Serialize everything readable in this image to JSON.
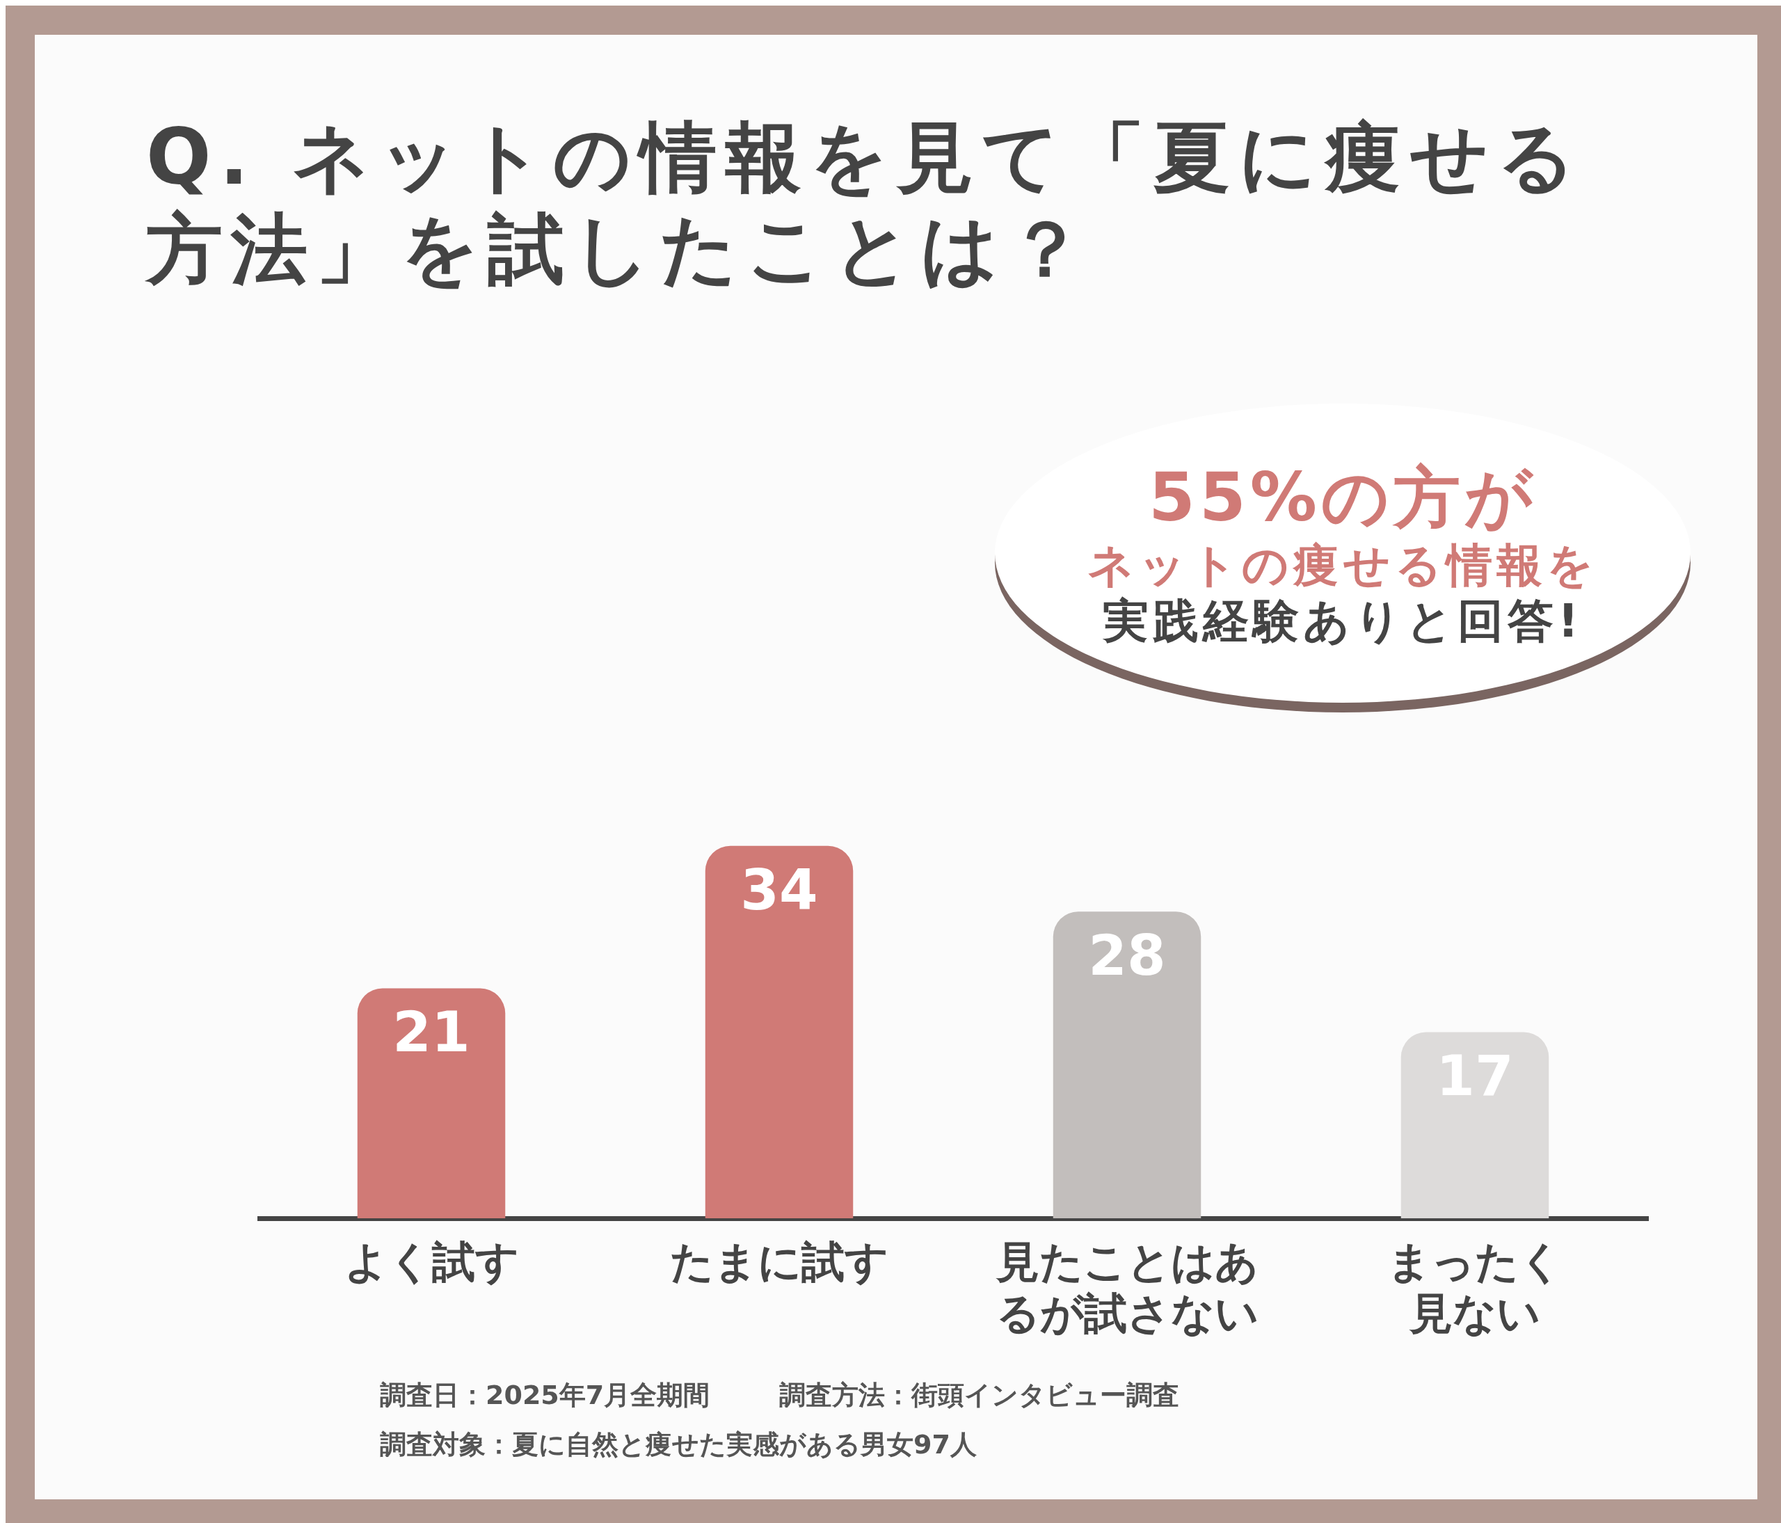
{
  "chart_data": {
    "type": "bar",
    "title": "Q. ネットの情報を見て「夏に痩せる方法」を試したことは？",
    "categories": [
      "よく試す",
      "たまに試す",
      "見たことはあるが試さない",
      "まったく見ない"
    ],
    "values": [
      21,
      34,
      28,
      17
    ],
    "colors": [
      "#d07a76",
      "#d07a76",
      "#c2bebc",
      "#dddbda"
    ],
    "data_labels": true,
    "grid": false,
    "legend": false,
    "annotations": [
      "55%の方が",
      "ネットの痩せる情報を",
      "実践経験ありと回答!",
      "調査日：2025年7月全期間",
      "調査方法：街頭インタビュー調査",
      "調査対象：夏に自然と痩せた実感がある男女97人"
    ]
  }
}
